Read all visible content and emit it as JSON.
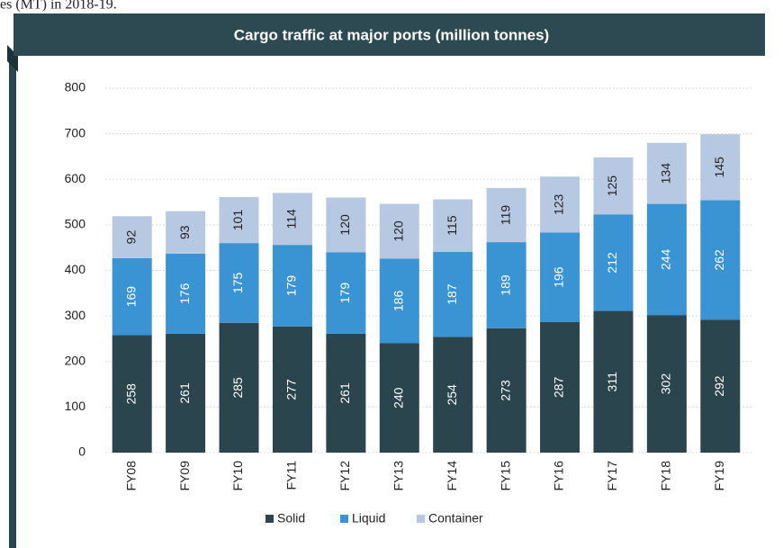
{
  "header_text": "es (MT) in 2018-19.",
  "chart_data": {
    "type": "bar",
    "stacked": true,
    "title": "Cargo traffic at major ports (million tonnes)",
    "categories": [
      "FY08",
      "FY09",
      "FY10",
      "FY11",
      "FY12",
      "FY13",
      "FY14",
      "FY15",
      "FY16",
      "FY17",
      "FY18",
      "FY19"
    ],
    "series": [
      {
        "name": "Solid",
        "color": "#2b454e",
        "values": [
          258,
          261,
          285,
          277,
          261,
          240,
          254,
          273,
          287,
          311,
          302,
          292
        ]
      },
      {
        "name": "Liquid",
        "color": "#3a93d3",
        "values": [
          169,
          176,
          175,
          179,
          179,
          186,
          187,
          189,
          196,
          212,
          244,
          262
        ]
      },
      {
        "name": "Container",
        "color": "#b7c9e2",
        "values": [
          92,
          93,
          101,
          114,
          120,
          120,
          115,
          119,
          123,
          125,
          134,
          145
        ]
      }
    ],
    "ylim": [
      0,
      800
    ],
    "yticks": [
      0,
      100,
      200,
      300,
      400,
      500,
      600,
      700,
      800
    ],
    "grid": true,
    "legend": "bottom"
  }
}
